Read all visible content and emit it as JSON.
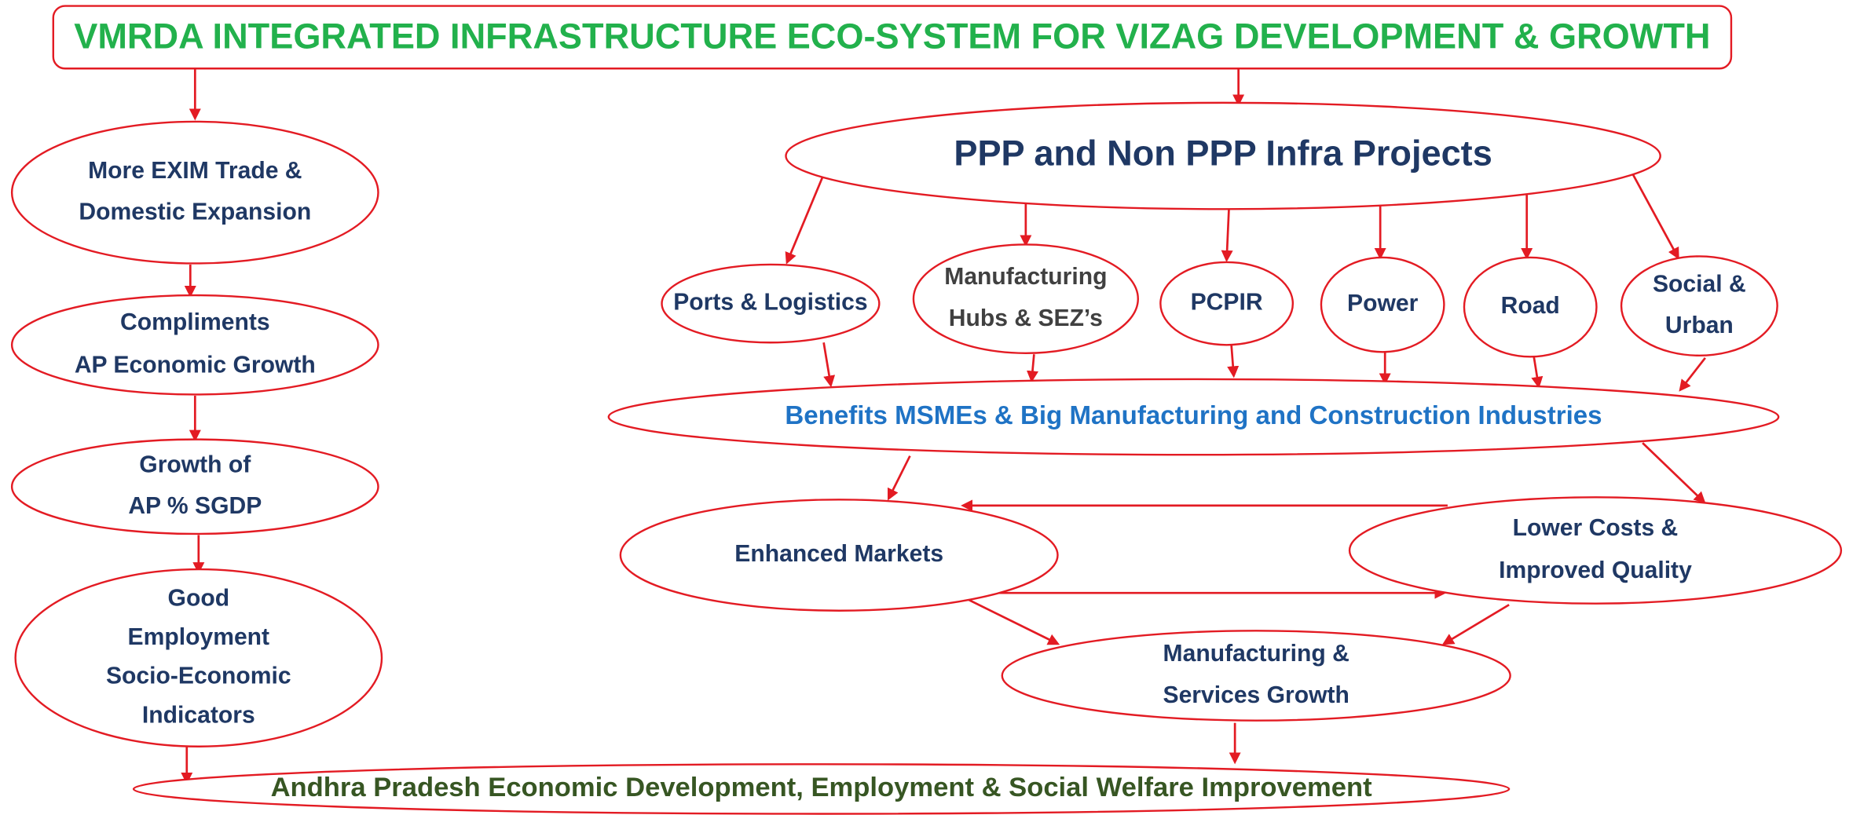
{
  "title": "VMRDA INTEGRATED INFRASTRUCTURE ECO-SYSTEM FOR VIZAG DEVELOPMENT & GROWTH",
  "nodes": [
    {
      "label": [
        "More EXIM Trade &",
        "Domestic Expansion"
      ]
    },
    {
      "label": [
        "Compliments",
        "AP Economic Growth"
      ]
    },
    {
      "label": [
        "Growth of",
        "AP  % SGDP"
      ]
    },
    {
      "label": [
        "Good",
        "Employment",
        "Socio-Economic",
        "Indicators"
      ]
    },
    {
      "label": [
        "PPP and Non PPP Infra Projects"
      ]
    },
    {
      "label": [
        "Ports & Logistics"
      ]
    },
    {
      "label": [
        "Manufacturing",
        "Hubs & SEZ’s"
      ]
    },
    {
      "label": [
        "PCPIR"
      ]
    },
    {
      "label": [
        "Power"
      ]
    },
    {
      "label": [
        "Road"
      ]
    },
    {
      "label": [
        "Social &",
        "Urban"
      ]
    },
    {
      "label": [
        "Benefits MSMEs & Big Manufacturing and Construction Industries"
      ]
    },
    {
      "label": [
        "Enhanced Markets"
      ]
    },
    {
      "label": [
        "Lower Costs &",
        "Improved Quality"
      ]
    },
    {
      "label": [
        "Manufacturing &",
        "Services Growth"
      ]
    },
    {
      "label": [
        "Andhra Pradesh Economic Development, Employment & Social Welfare Improvement"
      ]
    }
  ]
}
